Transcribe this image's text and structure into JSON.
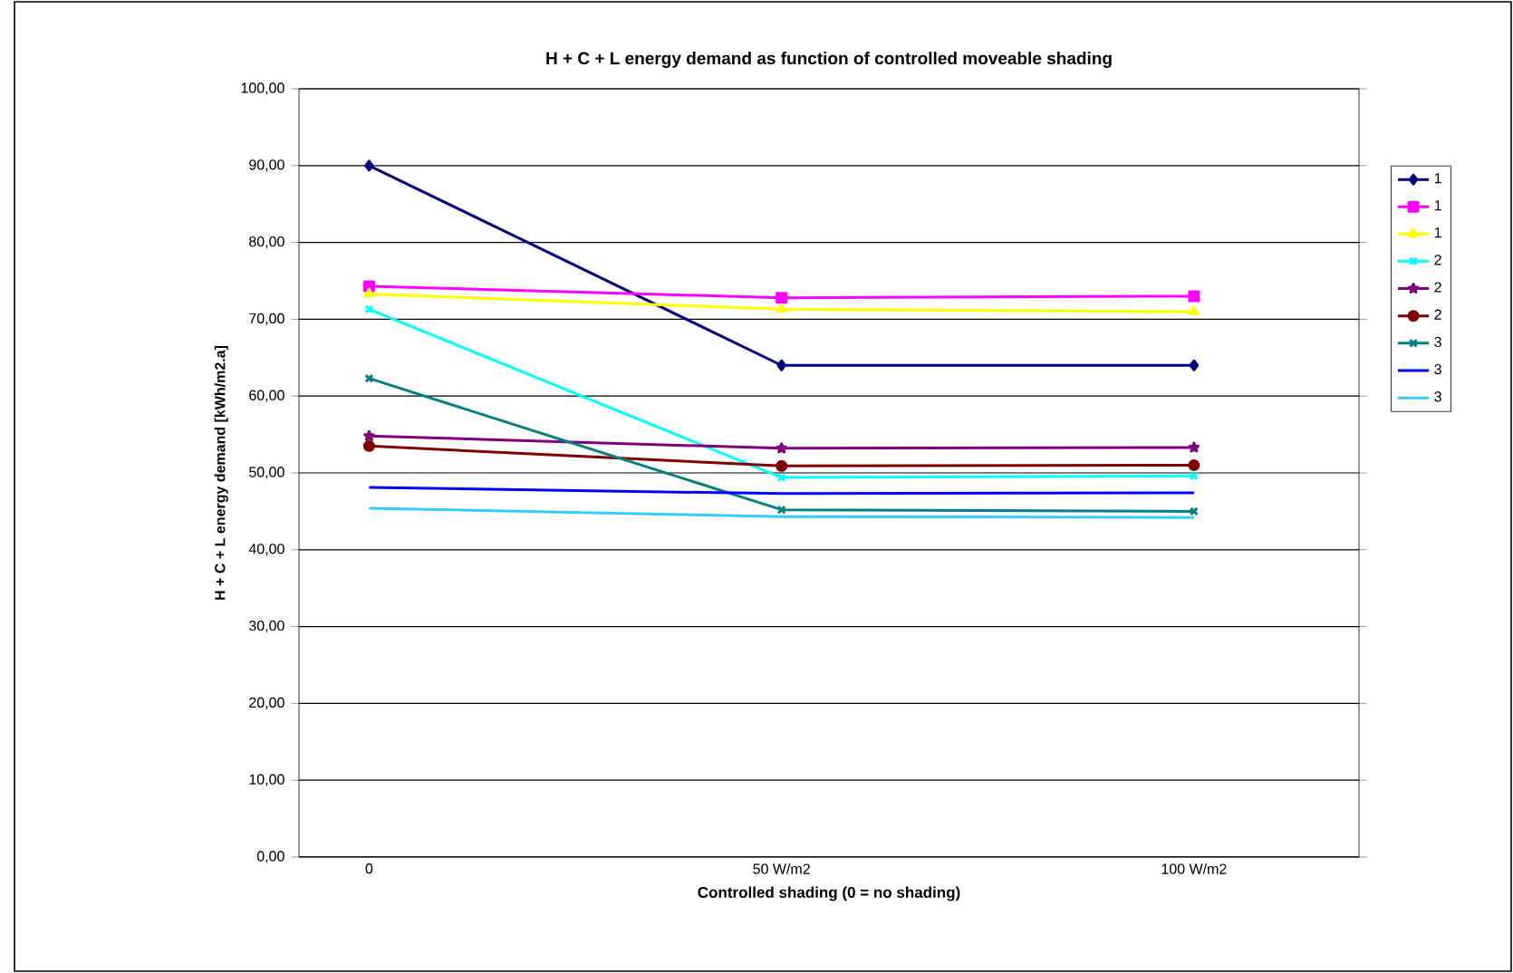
{
  "chart_data": {
    "type": "line",
    "title": "H + C + L energy demand as function of controlled moveable shading",
    "xlabel": "Controlled shading (0 = no shading)",
    "ylabel": "H + C + L energy demand  [kWh/m2.a]",
    "categories": [
      "0",
      "50 W/m2",
      "100 W/m2"
    ],
    "ylim": [
      0,
      100
    ],
    "yticks": [
      {
        "value": 0,
        "label": "0,00"
      },
      {
        "value": 10,
        "label": "10,00"
      },
      {
        "value": 20,
        "label": "20,00"
      },
      {
        "value": 30,
        "label": "30,00"
      },
      {
        "value": 40,
        "label": "40,00"
      },
      {
        "value": 50,
        "label": "50,00"
      },
      {
        "value": 60,
        "label": "60,00"
      },
      {
        "value": 70,
        "label": "70,00"
      },
      {
        "value": 80,
        "label": "80,00"
      },
      {
        "value": 90,
        "label": "90,00"
      },
      {
        "value": 100,
        "label": "100,00"
      }
    ],
    "grid": "y",
    "legend": "right",
    "line_style": "solid",
    "series": [
      {
        "name": "1",
        "color": "#000080",
        "marker": "diamond",
        "values": [
          90,
          64,
          64
        ]
      },
      {
        "name": "1",
        "color": "#ff00ff",
        "marker": "square",
        "values": [
          74.3,
          72.8,
          73
        ]
      },
      {
        "name": "1",
        "color": "#ffff00",
        "marker": "triangle",
        "values": [
          73.3,
          71.3,
          71
        ]
      },
      {
        "name": "2",
        "color": "#00ffff",
        "marker": "cross",
        "values": [
          71.3,
          49.4,
          49.6
        ]
      },
      {
        "name": "2",
        "color": "#800080",
        "marker": "star",
        "values": [
          54.8,
          53.2,
          53.3
        ]
      },
      {
        "name": "2",
        "color": "#800000",
        "marker": "circle",
        "values": [
          53.5,
          50.9,
          51
        ]
      },
      {
        "name": "3",
        "color": "#008080",
        "marker": "cross",
        "values": [
          62.3,
          45.2,
          45
        ]
      },
      {
        "name": "3",
        "color": "#0000ff",
        "marker": "none",
        "values": [
          48.1,
          47.3,
          47.4
        ]
      },
      {
        "name": "3",
        "color": "#33ccff",
        "marker": "none",
        "values": [
          45.4,
          44.3,
          44.2
        ]
      }
    ]
  }
}
